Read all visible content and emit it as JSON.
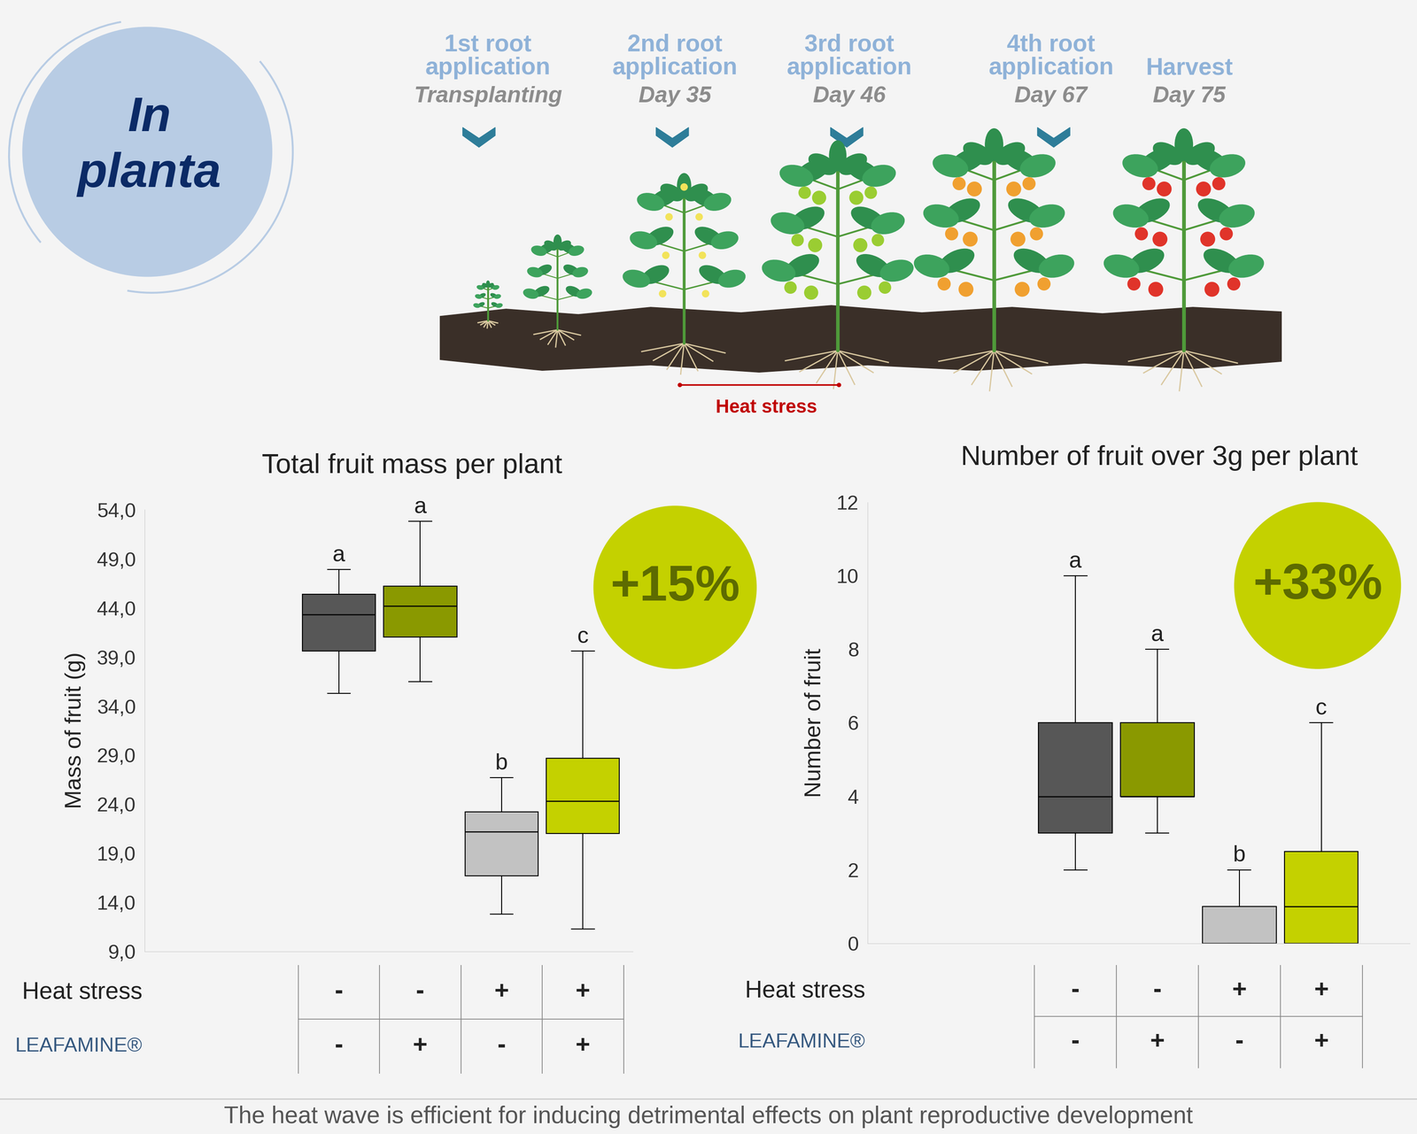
{
  "header": {
    "badge": "In\nplanta"
  },
  "timeline": {
    "steps": [
      {
        "title": "1st root\napplication",
        "subtitle": "Transplanting"
      },
      {
        "title": "2nd root\napplication",
        "subtitle": "Day 35"
      },
      {
        "title": "3rd root\napplication",
        "subtitle": "Day 46"
      },
      {
        "title": "4th root\napplication",
        "subtitle": "Day 67"
      },
      {
        "title": "Harvest",
        "subtitle": "Day 75"
      }
    ],
    "heat_stress": "Heat stress"
  },
  "chart_data": [
    {
      "type": "box",
      "title": "Total fruit mass per plant",
      "y_label": "Mass of fruit (g)",
      "ylim": [
        9,
        54
      ],
      "yticks": [
        {
          "value": 9,
          "label": "9,0"
        },
        {
          "value": 14,
          "label": "14,0"
        },
        {
          "value": 19,
          "label": "19,0"
        },
        {
          "value": 24,
          "label": "24,0"
        },
        {
          "value": 29,
          "label": "29,0"
        },
        {
          "value": 34,
          "label": "34,0"
        },
        {
          "value": 39,
          "label": "39,0"
        },
        {
          "value": 44,
          "label": "44,0"
        },
        {
          "value": 49,
          "label": "49,0"
        },
        {
          "value": 54,
          "label": "54,0"
        }
      ],
      "boxes": [
        {
          "whislo": 35.3,
          "q1": 39.6,
          "med": 43.3,
          "q3": 45.4,
          "whishi": 47.9,
          "letter": "a",
          "color": "#575757"
        },
        {
          "whislo": 36.5,
          "q1": 41.0,
          "med": 44.2,
          "q3": 46.2,
          "whishi": 52.8,
          "letter": "a",
          "color": "#8a9900"
        },
        {
          "whislo": 12.8,
          "q1": 16.7,
          "med": 21.2,
          "q3": 23.2,
          "whishi": 26.7,
          "letter": "b",
          "color": "#c2c2c2"
        },
        {
          "whislo": 11.3,
          "q1": 21.0,
          "med": 24.3,
          "q3": 28.7,
          "whishi": 39.6,
          "letter": "c",
          "color": "#c4d100"
        }
      ],
      "annotation": "+15%",
      "table": {
        "rows": [
          {
            "label": "Heat stress",
            "cells": [
              "-",
              "-",
              "+",
              "+"
            ]
          },
          {
            "label": "LEAFAMINE®",
            "cells": [
              "-",
              "+",
              "-",
              "+"
            ]
          }
        ]
      }
    },
    {
      "type": "box",
      "title": "Number of fruit over 3g per plant",
      "y_label": "Number of fruit",
      "ylim": [
        0,
        12
      ],
      "yticks": [
        0,
        2,
        4,
        6,
        8,
        10,
        12
      ],
      "boxes": [
        {
          "whislo": 2,
          "q1": 3,
          "med": 4,
          "q3": 6,
          "whishi": 10,
          "letter": "a",
          "color": "#575757"
        },
        {
          "whislo": 3,
          "q1": 4,
          "med": 4,
          "q3": 6,
          "whishi": 8,
          "letter": "a",
          "color": "#8a9900"
        },
        {
          "whislo": 0,
          "q1": 0,
          "med": 0,
          "q3": 1,
          "whishi": 2,
          "letter": "b",
          "color": "#c2c2c2"
        },
        {
          "whislo": 0,
          "q1": 0,
          "med": 1,
          "q3": 2.5,
          "whishi": 6,
          "letter": "c",
          "color": "#c4d100"
        }
      ],
      "annotation": "+33%",
      "table": {
        "rows": [
          {
            "label": "Heat stress",
            "cells": [
              "-",
              "-",
              "+",
              "+"
            ]
          },
          {
            "label": "LEAFAMINE®",
            "cells": [
              "-",
              "+",
              "-",
              "+"
            ]
          }
        ]
      }
    }
  ],
  "caption": "The heat wave is efficient for inducing detrimental effects on plant reproductive development"
}
